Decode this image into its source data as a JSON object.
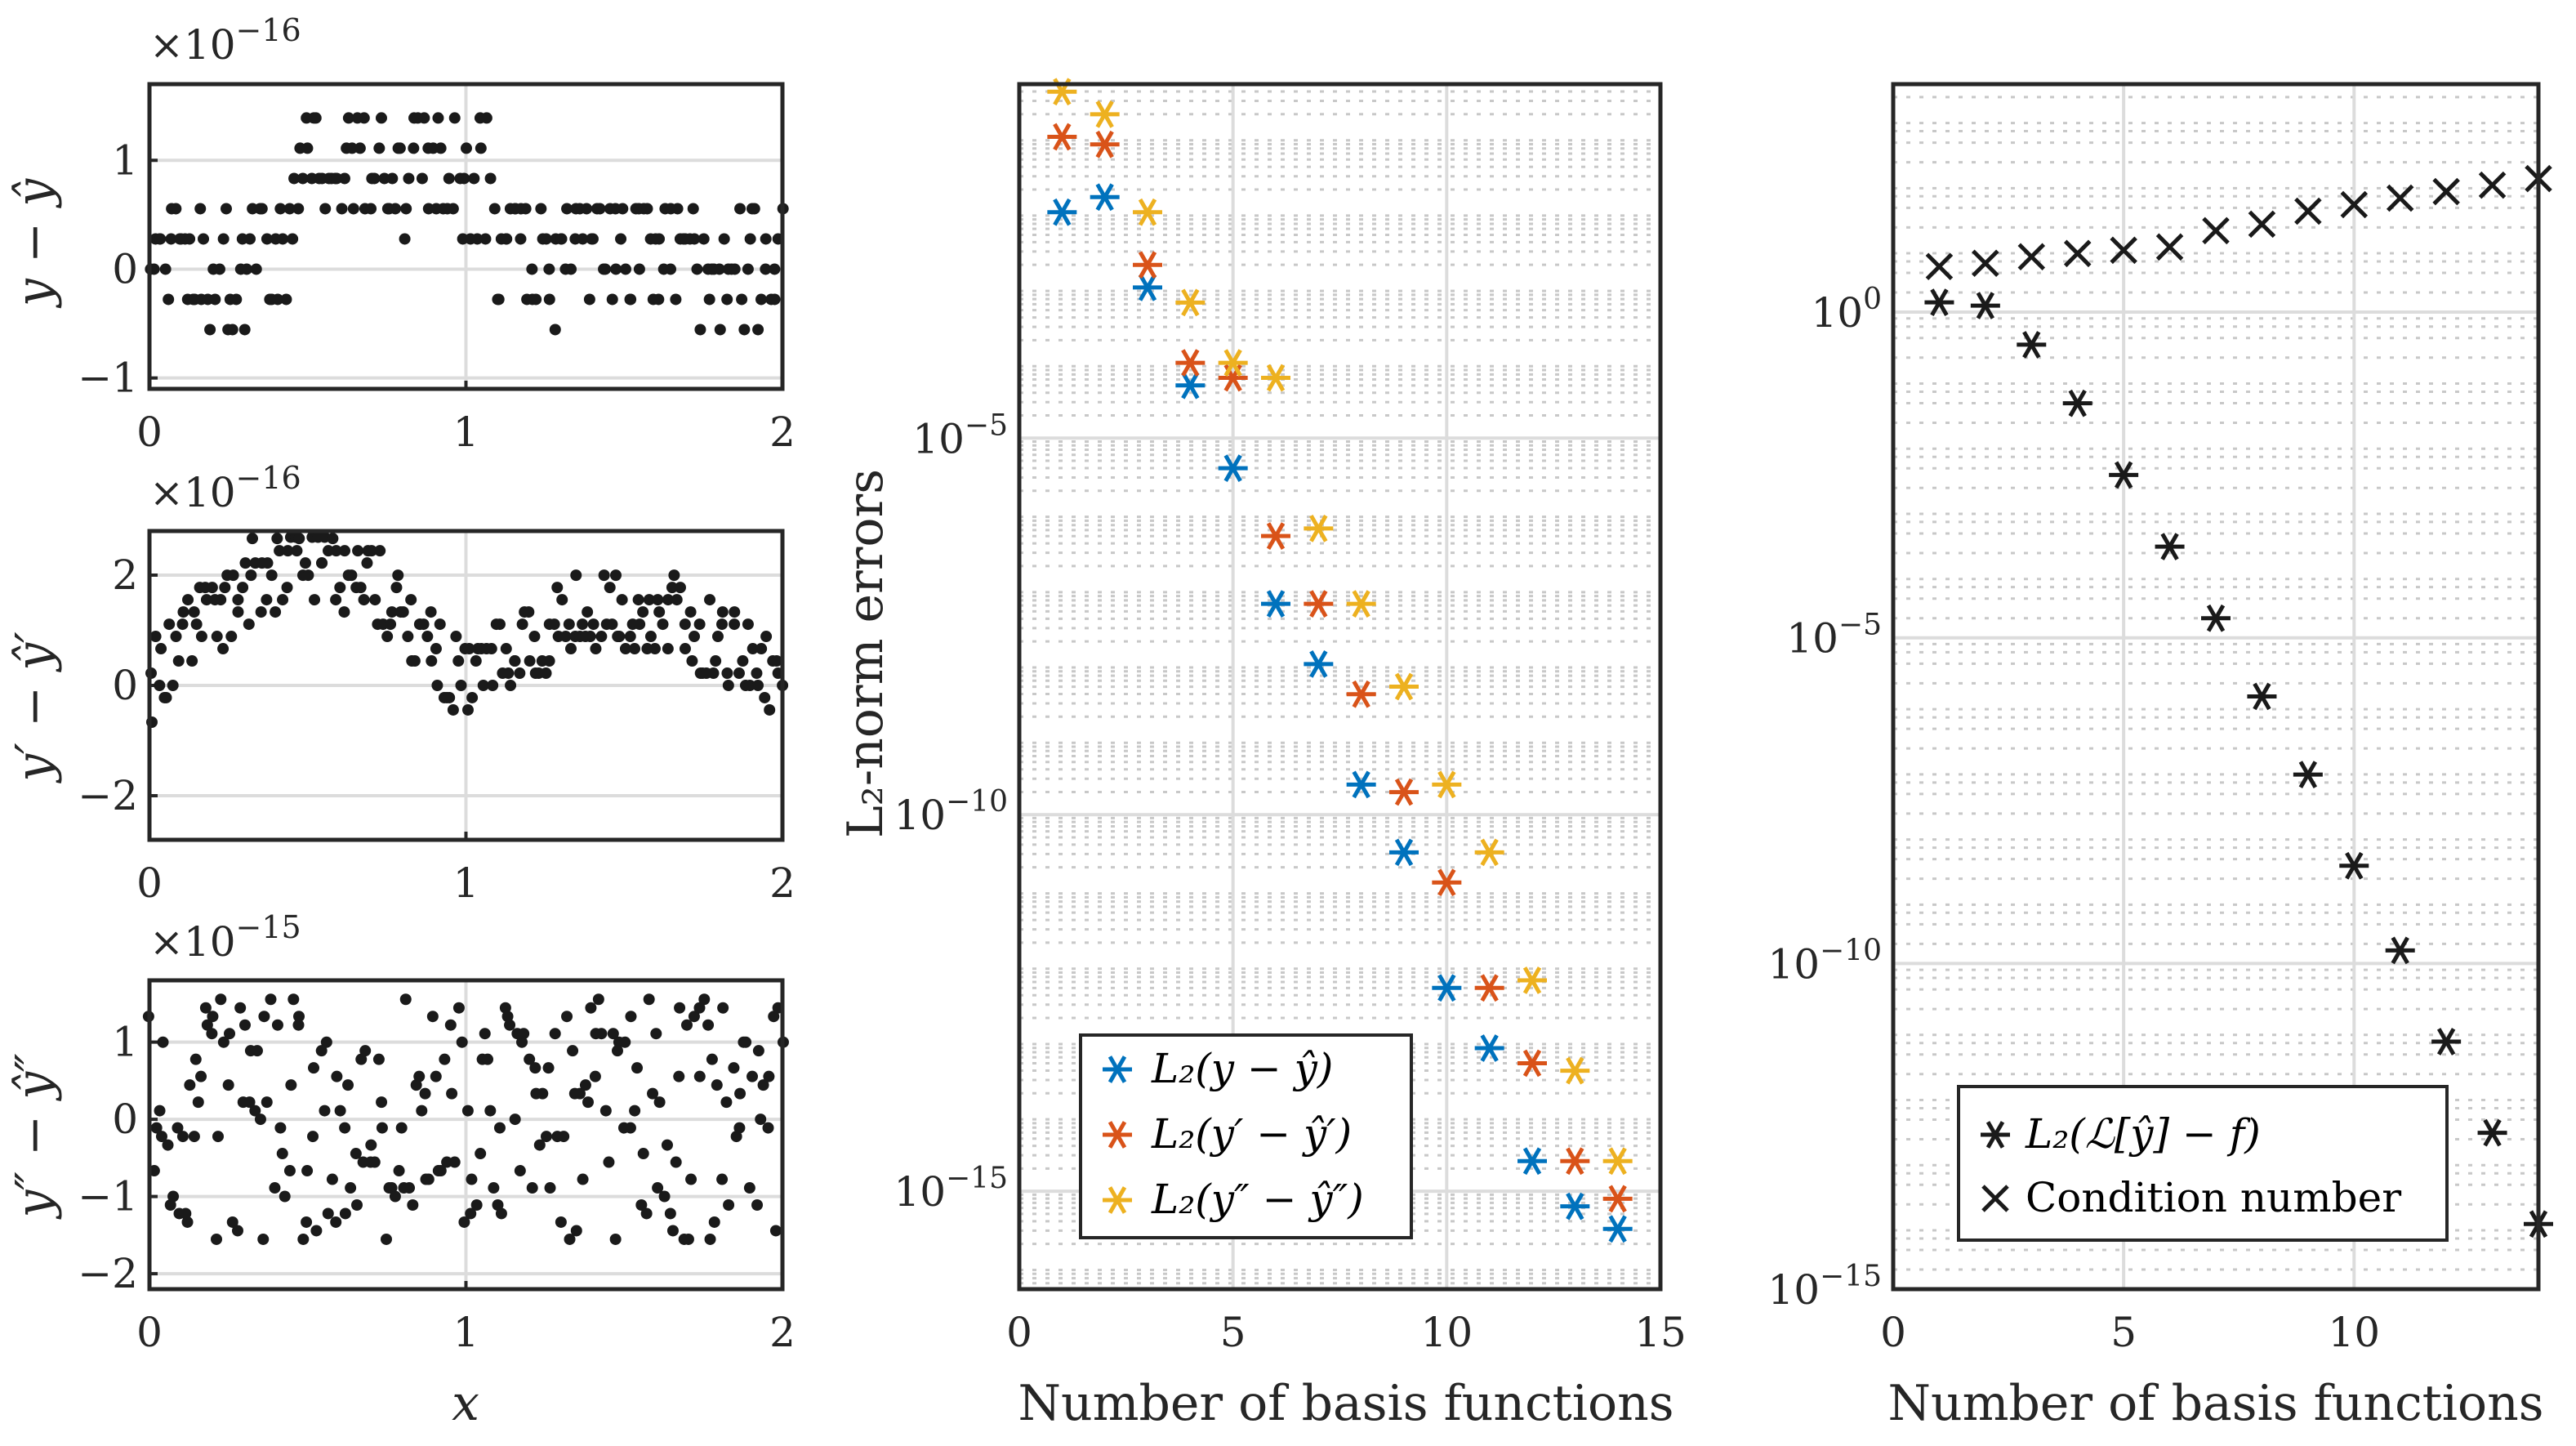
{
  "colors": {
    "series1": "#0072BD",
    "series2": "#D95319",
    "series3": "#EDB120",
    "points": "#1a1a1a",
    "axis": "#262626",
    "grid": "#dcdcdc"
  },
  "chart_data": [
    {
      "id": "residual_y",
      "type": "scatter",
      "xlabel": "",
      "ylabel": "y − ŷ",
      "multiplier": "×10",
      "exponent": "−16",
      "xlim": [
        0,
        2
      ],
      "ylim": [
        -1.1,
        1.7
      ],
      "xticks": [
        0,
        1,
        2
      ],
      "xtick_labels": [
        "0",
        "1",
        "2"
      ],
      "yticks": [
        -1,
        0,
        1
      ],
      "ytick_labels": [
        "−1",
        "0",
        "1"
      ],
      "grid": true,
      "noise": {
        "seed": 11,
        "n": 220,
        "amp": 0.6,
        "quant": 0.2778
      }
    },
    {
      "id": "residual_dy",
      "type": "scatter",
      "xlabel": "",
      "ylabel": "y′ − ŷ′",
      "multiplier": "×10",
      "exponent": "−16",
      "xlim": [
        0,
        2
      ],
      "ylim": [
        -2.8,
        2.8
      ],
      "xticks": [
        0,
        1,
        2
      ],
      "xtick_labels": [
        "0",
        "1",
        "2"
      ],
      "yticks": [
        -2,
        0,
        2
      ],
      "ytick_labels": [
        "−2",
        "0",
        "2"
      ],
      "grid": true,
      "noise": {
        "seed": 23,
        "n": 220,
        "amp": 0.8,
        "quant": 0.222
      }
    },
    {
      "id": "residual_ddy",
      "type": "scatter",
      "xlabel": "x",
      "ylabel": "y″ − ŷ″",
      "multiplier": "×10",
      "exponent": "−15",
      "xlim": [
        0,
        2
      ],
      "ylim": [
        -2.2,
        1.8
      ],
      "xticks": [
        0,
        1,
        2
      ],
      "xtick_labels": [
        "0",
        "1",
        "2"
      ],
      "yticks": [
        -2,
        -1,
        0,
        1
      ],
      "ytick_labels": [
        "−2",
        "−1",
        "0",
        "1"
      ],
      "grid": true,
      "noise": {
        "seed": 37,
        "n": 220,
        "amp": 1.0,
        "quant": 0.111
      }
    },
    {
      "id": "l2_errors",
      "type": "scatter",
      "xlabel": "Number of basis functions",
      "ylabel": "L₂-norm errors",
      "yscale": "log",
      "xlim": [
        0,
        15
      ],
      "ylim_exp": [
        -16.3,
        -0.3
      ],
      "xticks": [
        0,
        5,
        10,
        15
      ],
      "xtick_labels": [
        "0",
        "5",
        "10",
        "15"
      ],
      "yticks_exp": [
        -15,
        -10,
        -5
      ],
      "ytick_labels": [
        "10",
        "10",
        "10"
      ],
      "ytick_exponents": [
        "−15",
        "−10",
        "−5"
      ],
      "x": [
        1,
        2,
        3,
        4,
        5,
        6,
        7,
        8,
        9,
        10,
        11,
        12,
        13,
        14
      ],
      "series": [
        {
          "name": "L₂(y − ŷ)",
          "marker": "asterisk",
          "color_key": "series1",
          "log10_values": [
            -2.0,
            -1.8,
            -3.0,
            -4.3,
            -5.4,
            -7.2,
            -8.0,
            -9.6,
            -10.5,
            -12.3,
            -13.1,
            -14.6,
            -15.2,
            -15.5
          ]
        },
        {
          "name": "L₂(y′ − ŷ′)",
          "marker": "asterisk",
          "color_key": "series2",
          "log10_values": [
            -1.0,
            -1.1,
            -2.7,
            -4.0,
            -4.2,
            -6.3,
            -7.2,
            -8.4,
            -9.7,
            -10.9,
            -12.3,
            -13.3,
            -14.6,
            -15.1
          ]
        },
        {
          "name": "L₂(y″ − ŷ″)",
          "marker": "asterisk",
          "color_key": "series3",
          "log10_values": [
            -0.4,
            -0.7,
            -2.0,
            -3.2,
            -4.0,
            -4.2,
            -6.2,
            -7.2,
            -8.3,
            -9.6,
            -10.5,
            -12.2,
            -13.4,
            -14.6
          ]
        }
      ],
      "legend_position": "bottom-left"
    },
    {
      "id": "residual_condition",
      "type": "scatter",
      "xlabel": "Number of basis functions",
      "ylabel": "",
      "yscale": "log",
      "xlim": [
        0,
        14
      ],
      "ylim_exp": [
        -15,
        3.5
      ],
      "xticks": [
        0,
        5,
        10
      ],
      "xtick_labels": [
        "0",
        "5",
        "10"
      ],
      "yticks_exp": [
        -15,
        -10,
        -5,
        0
      ],
      "ytick_labels": [
        "10",
        "10",
        "10",
        "10"
      ],
      "ytick_exponents": [
        "−15",
        "−10",
        "−5",
        "0"
      ],
      "x": [
        1,
        2,
        3,
        4,
        5,
        6,
        7,
        8,
        9,
        10,
        11,
        12,
        13,
        14
      ],
      "series": [
        {
          "name": "L₂(ℒ[ŷ] − f)",
          "marker": "asterisk",
          "color_key": "points",
          "log10_values": [
            0.15,
            0.1,
            -0.5,
            -1.4,
            -2.5,
            -3.6,
            -4.7,
            -5.9,
            -7.1,
            -8.5,
            -9.8,
            -11.2,
            -12.6,
            -14.0
          ]
        },
        {
          "name": "Condition number",
          "marker": "cross",
          "color_key": "points",
          "log10_values": [
            0.7,
            0.75,
            0.85,
            0.9,
            0.95,
            1.0,
            1.25,
            1.35,
            1.55,
            1.65,
            1.75,
            1.85,
            1.95,
            2.05
          ]
        }
      ],
      "legend_position": "bottom-right"
    }
  ]
}
